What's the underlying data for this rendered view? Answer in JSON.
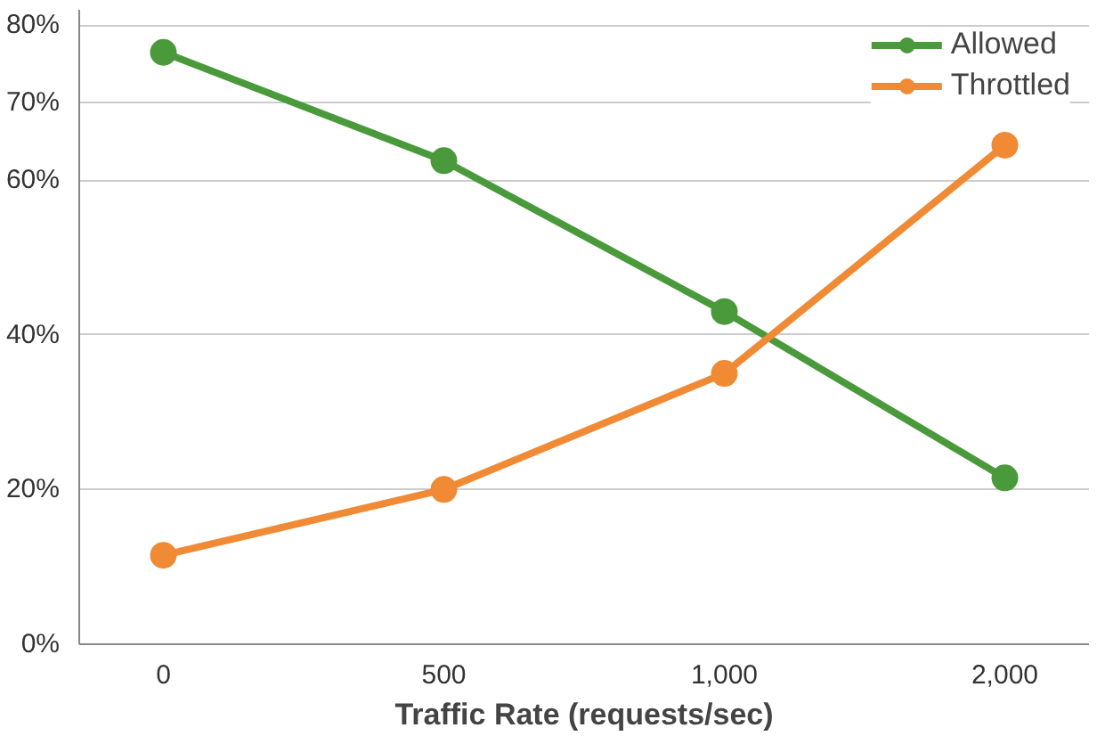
{
  "chart_data": {
    "type": "line",
    "xlabel": "Traffic Rate (requests/sec)",
    "categories": [
      "0",
      "500",
      "1,000",
      "2,000"
    ],
    "series": [
      {
        "name": "Allowed",
        "color": "#4a9a3c",
        "values": [
          76.5,
          62.5,
          43,
          21.5
        ]
      },
      {
        "name": "Throttled",
        "color": "#f08a35",
        "values": [
          11.5,
          20,
          35,
          64.5
        ]
      }
    ],
    "ylim": [
      0,
      82
    ],
    "yticks": [
      {
        "value": 0,
        "label": "0%"
      },
      {
        "value": 20,
        "label": "20%"
      },
      {
        "value": 40,
        "label": "40%"
      },
      {
        "value": 60,
        "label": "60%"
      },
      {
        "value": 70,
        "label": "70%"
      },
      {
        "value": 80,
        "label": "80%"
      }
    ],
    "grid": "y",
    "legend": "top right",
    "marker": "circle",
    "line_style": "solid"
  }
}
